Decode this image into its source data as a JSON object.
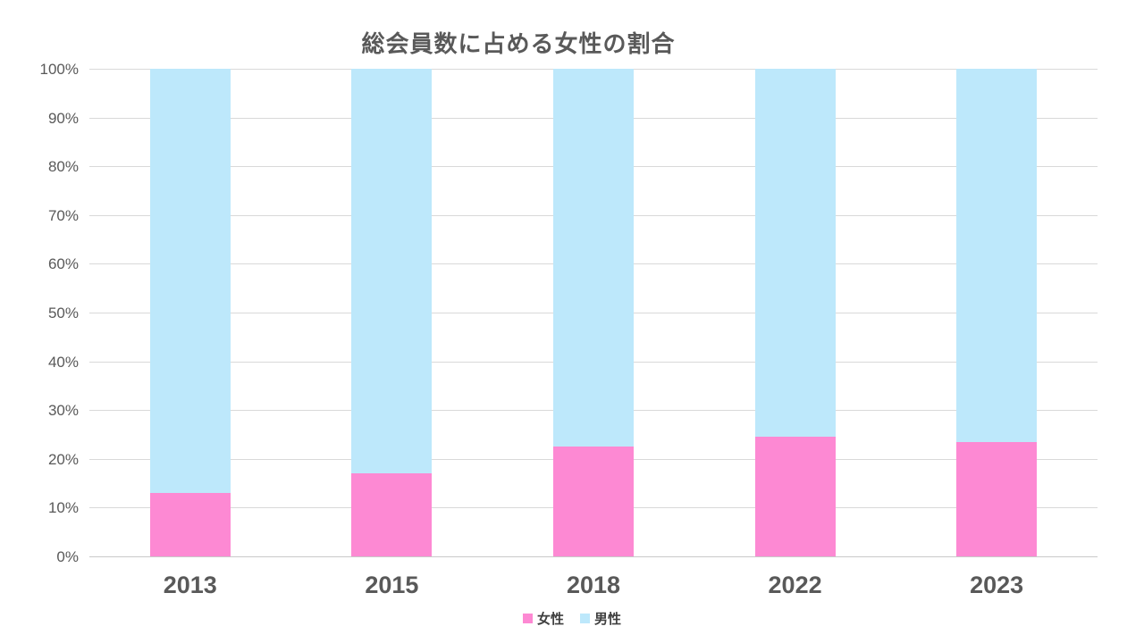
{
  "title": "総会員数に占める女性の割合",
  "colors": {
    "female": "#FD89D3",
    "male": "#BDE8FB",
    "gridline": "#D9D9D9",
    "axis_line": "#C9C9C9",
    "title_text": "#595959",
    "axis_text": "#595959",
    "legend_text": "#404040",
    "background": "#FFFFFF"
  },
  "chart_data": {
    "type": "bar",
    "stacked": true,
    "percent_stacked": true,
    "title": "総会員数に占める女性の割合",
    "categories": [
      "2013",
      "2015",
      "2018",
      "2022",
      "2023"
    ],
    "series": [
      {
        "name": "女性",
        "color": "#FD89D3",
        "values": [
          13,
          17,
          22.6,
          24.5,
          23.4
        ]
      },
      {
        "name": "男性",
        "color": "#BDE8FB",
        "values": [
          87,
          83,
          77.4,
          75.5,
          76.6
        ]
      }
    ],
    "xlabel": "",
    "ylabel": "",
    "ylim": [
      0,
      100
    ],
    "ytick_step": 10,
    "ytick_labels_top_to_bottom": [
      "100%",
      "90%",
      "80%",
      "70%",
      "60%",
      "50%",
      "40%",
      "30%",
      "20%",
      "10%",
      "0%"
    ],
    "grid": true,
    "legend_position": "bottom"
  },
  "legend": {
    "items": [
      {
        "label": "女性"
      },
      {
        "label": "男性"
      }
    ]
  }
}
